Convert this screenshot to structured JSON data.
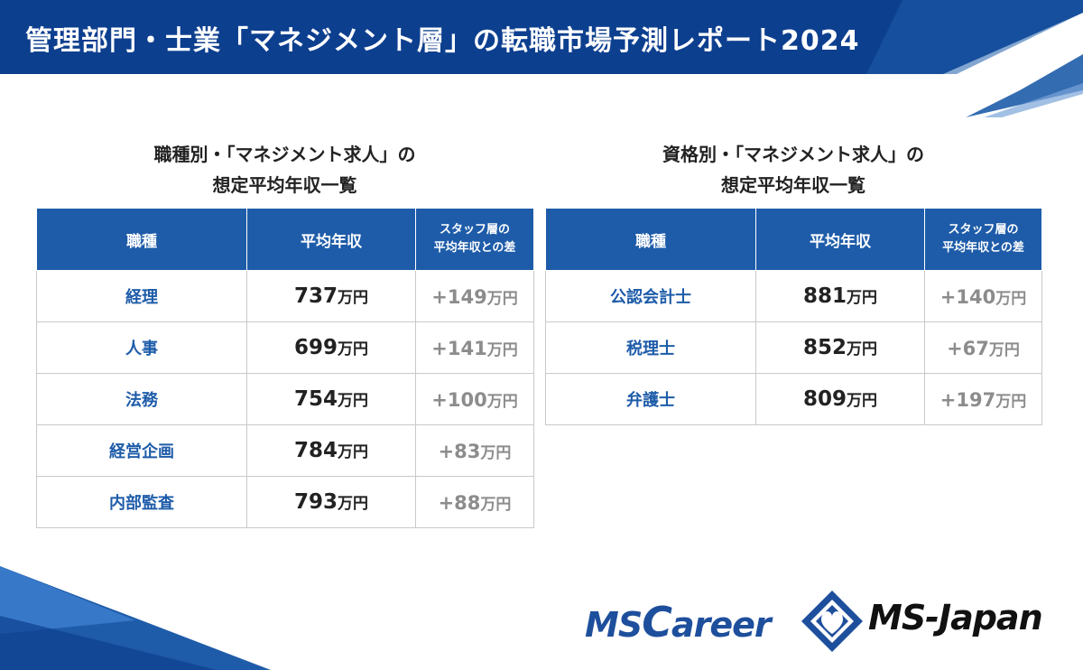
{
  "header": {
    "title": "管理部門・士業「マネジメント層」の転職市場予測レポート2024"
  },
  "colors": {
    "brand_blue": "#1e5ca9",
    "dark_blue": "#0d3f8f",
    "diff_gray": "#8c8c8c"
  },
  "left_table": {
    "heading_line1": "職種別・「マネジメント求人」の",
    "heading_line2": "想定平均年収一覧",
    "headers": {
      "col1": "職種",
      "col2": "平均年収",
      "col3_line1": "スタッフ層の",
      "col3_line2": "平均年収との差"
    },
    "rows": [
      {
        "job": "経理",
        "salary": "737",
        "diff": "+149"
      },
      {
        "job": "人事",
        "salary": "699",
        "diff": "+141"
      },
      {
        "job": "法務",
        "salary": "754",
        "diff": "+100"
      },
      {
        "job": "経営企画",
        "salary": "784",
        "diff": "+83"
      },
      {
        "job": "内部監査",
        "salary": "793",
        "diff": "+88"
      }
    ]
  },
  "right_table": {
    "heading_line1": "資格別・「マネジメント求人」の",
    "heading_line2": "想定平均年収一覧",
    "headers": {
      "col1": "職種",
      "col2": "平均年収",
      "col3_line1": "スタッフ層の",
      "col3_line2": "平均年収との差"
    },
    "rows": [
      {
        "job": "公認会計士",
        "salary": "881",
        "diff": "+140"
      },
      {
        "job": "税理士",
        "salary": "852",
        "diff": "+67"
      },
      {
        "job": "弁護士",
        "salary": "809",
        "diff": "+197"
      }
    ]
  },
  "unit": "万円",
  "logos": {
    "mscareer_prefix": "MS",
    "mscareer_big": "C",
    "mscareer_rest": "areer",
    "msjapan": "MS-Japan"
  }
}
